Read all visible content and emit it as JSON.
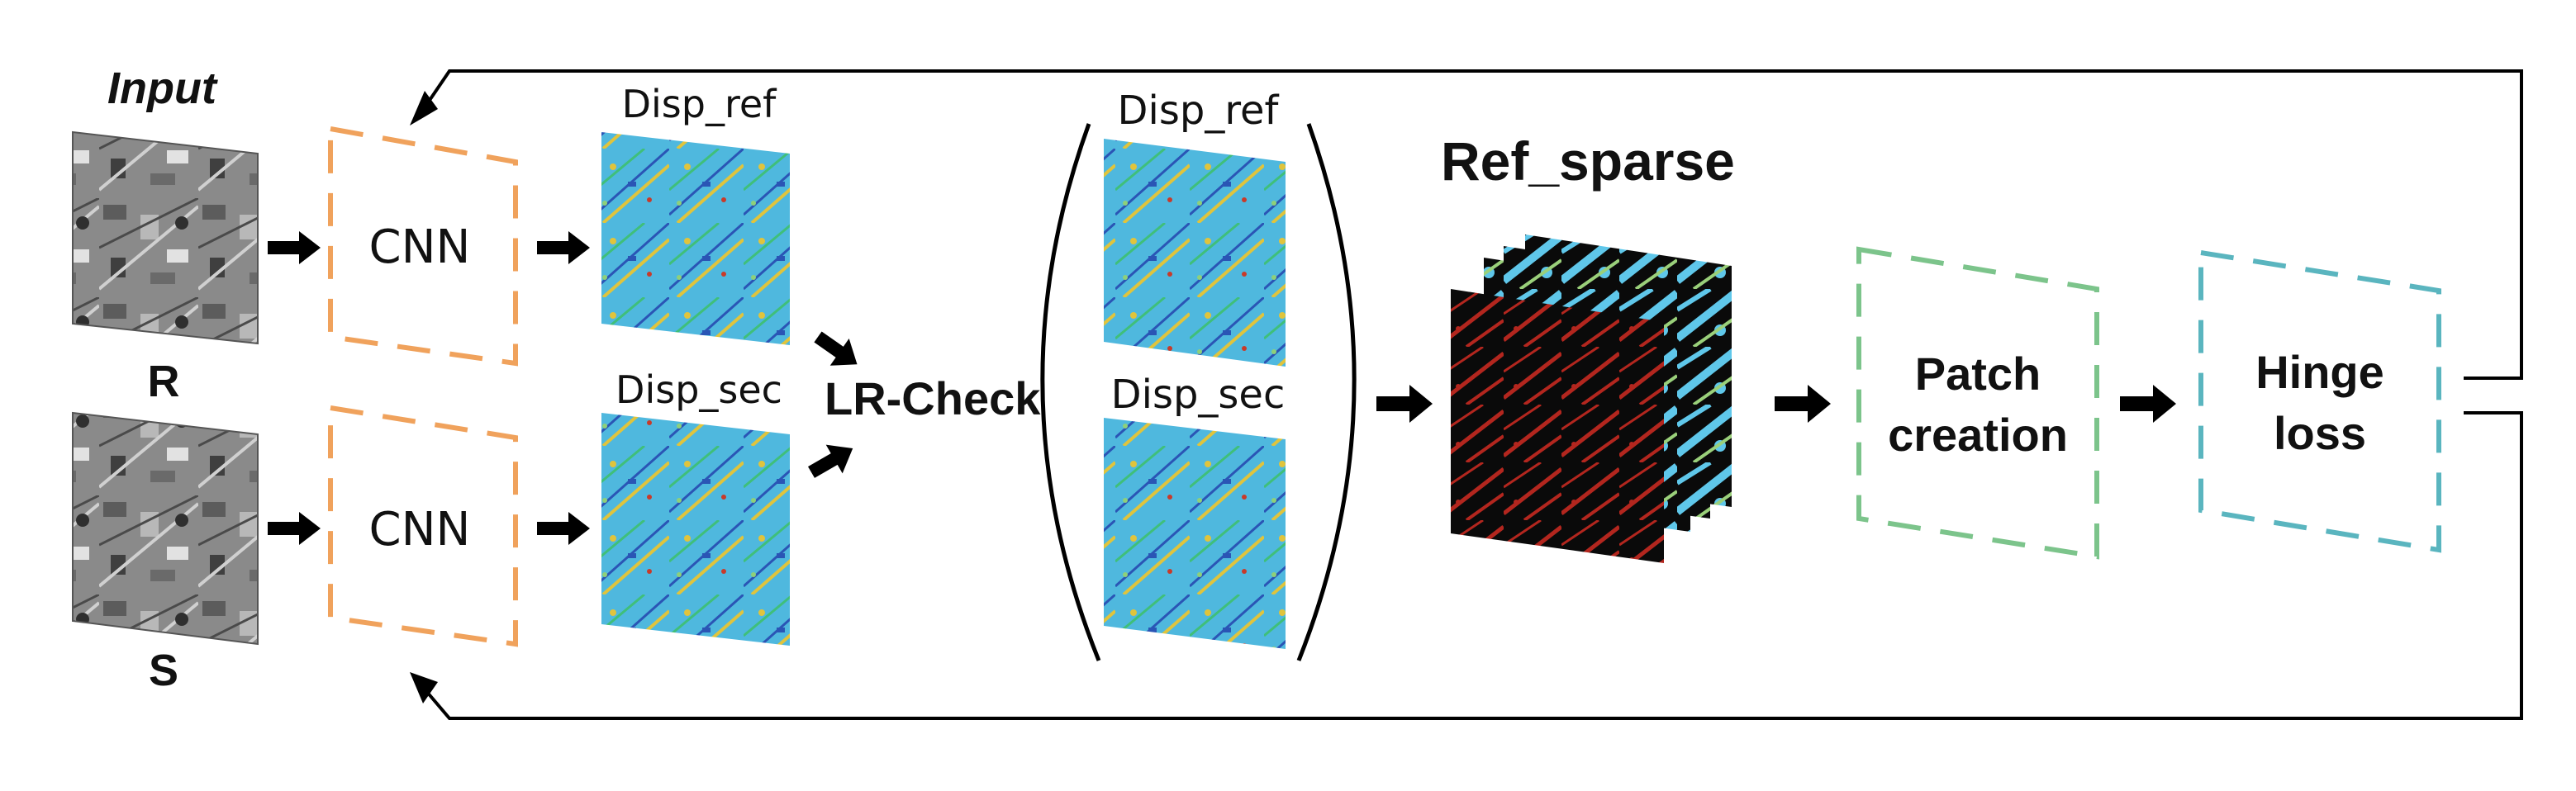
{
  "labels": {
    "input": "Input",
    "r": "R",
    "s": "S",
    "cnn_top": "CNN",
    "cnn_bottom": "CNN",
    "disp_ref": "Disp_ref",
    "disp_sec": "Disp_sec",
    "lr_check": "LR-Check",
    "disp_ref_out": "Disp_ref",
    "disp_sec_out": "Disp_sec",
    "ref_sparse": "Ref_sparse",
    "patch_line1": "Patch",
    "patch_line2": "creation",
    "hinge_line1": "Hinge",
    "hinge_line2": "loss"
  },
  "colors": {
    "cnn_box": "#f0a25c",
    "patch_box": "#7cc48b",
    "hinge_box": "#5ab5bf",
    "disparity_base": "#4fb8de",
    "sparse_red": "#b3261e",
    "arrow": "#000000"
  }
}
